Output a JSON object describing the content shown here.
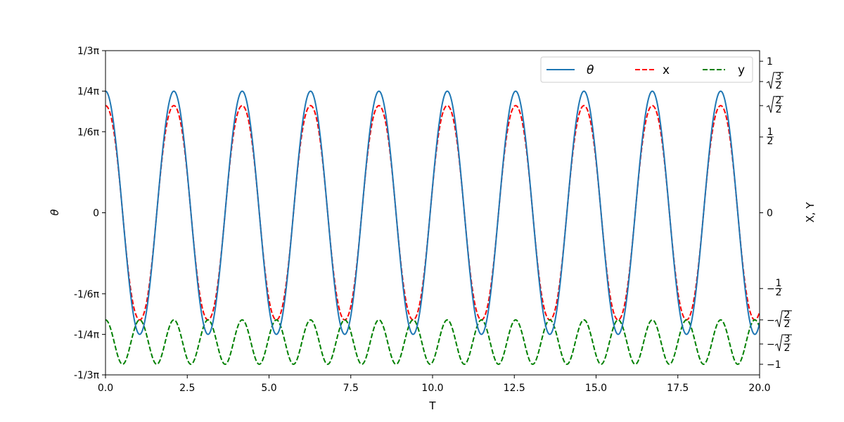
{
  "chart_data": {
    "type": "line",
    "title": "",
    "xlabel": "T",
    "ylabel_left": "θ",
    "ylabel_right": "X, Y",
    "xlim": [
      0,
      20
    ],
    "ylim_left": [
      -1.0472,
      1.0472
    ],
    "ylim_right": [
      -1.07,
      1.07
    ],
    "x_ticks": [
      {
        "value": 0,
        "label": "0.0"
      },
      {
        "value": 2.5,
        "label": "2.5"
      },
      {
        "value": 5,
        "label": "5.0"
      },
      {
        "value": 7.5,
        "label": "7.5"
      },
      {
        "value": 10,
        "label": "10.0"
      },
      {
        "value": 12.5,
        "label": "12.5"
      },
      {
        "value": 15,
        "label": "15.0"
      },
      {
        "value": 17.5,
        "label": "17.5"
      },
      {
        "value": 20,
        "label": "20.0"
      }
    ],
    "y_ticks_left": [
      {
        "value": 1.0472,
        "label": "1/3π"
      },
      {
        "value": 0.7854,
        "label": "1/4π"
      },
      {
        "value": 0.5236,
        "label": "1/6π"
      },
      {
        "value": 0,
        "label": "0"
      },
      {
        "value": -0.5236,
        "label": "-1/6π"
      },
      {
        "value": -0.7854,
        "label": "-1/4π"
      },
      {
        "value": -1.0472,
        "label": "-1/3π"
      }
    ],
    "y_ticks_right": [
      {
        "value": 1,
        "label": "1"
      },
      {
        "value": 0.866,
        "label": "√(3/2)"
      },
      {
        "value": 0.7071,
        "label": "√(2/2)"
      },
      {
        "value": 0.5,
        "label": "1/2"
      },
      {
        "value": 0,
        "label": "0"
      },
      {
        "value": -0.5,
        "label": "−1/2"
      },
      {
        "value": -0.7071,
        "label": "−√(2/2)"
      },
      {
        "value": -0.866,
        "label": "−√(3/2)"
      },
      {
        "value": -1,
        "label": "−1"
      }
    ],
    "legend": {
      "placement": "top-right",
      "ncol": 3
    },
    "grid": false,
    "series": [
      {
        "name": "θ",
        "axis": "left",
        "color": "#1f77b4",
        "style": "solid",
        "model": "theta0 * cos(2π t / period)",
        "theta0": 0.7854,
        "period": 2.09
      },
      {
        "name": "x",
        "axis": "right",
        "color": "#ff0000",
        "style": "dashed",
        "model": "sin(theta)"
      },
      {
        "name": "y",
        "axis": "right",
        "color": "#008000",
        "style": "dashed",
        "model": "-cos(theta)"
      }
    ]
  }
}
